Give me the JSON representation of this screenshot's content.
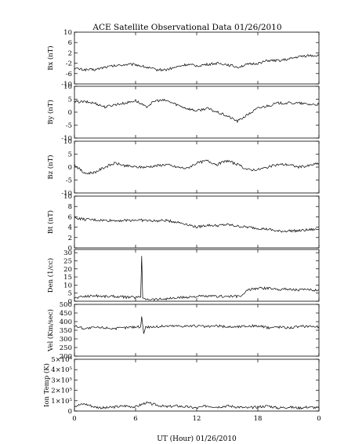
{
  "title": "ACE Satellite Observational Data   01/26/2010",
  "x_axis_label": "UT (Hour)   01/26/2010",
  "x_tick_labels": [
    "0",
    "6",
    "12",
    "18",
    "0"
  ],
  "chart_data": [
    {
      "type": "line",
      "ylabel": "Bx (nT)",
      "ylim": [
        -10,
        10
      ],
      "y_tick_labels": [
        "10",
        "6",
        "2",
        "-2",
        "-6",
        "-10"
      ],
      "xlim": [
        0,
        24
      ],
      "series": [
        {
          "x": [
            0,
            1,
            2,
            3,
            4,
            5,
            6,
            7,
            8,
            9,
            10,
            11,
            12,
            13,
            14,
            15,
            16,
            17,
            18,
            19,
            20,
            21,
            22,
            23,
            24
          ],
          "values": [
            -4,
            -4.5,
            -4.5,
            -3.5,
            -3,
            -2.5,
            -2.5,
            -3.5,
            -4.5,
            -4.5,
            -3.5,
            -2.5,
            -3,
            -2.5,
            -2,
            -2.5,
            -3.5,
            -2.5,
            -2,
            -1,
            -1,
            -0.5,
            0.5,
            1,
            1
          ]
        }
      ]
    },
    {
      "type": "line",
      "ylabel": "By (nT)",
      "ylim": [
        -10,
        10
      ],
      "y_tick_labels": [
        "10",
        "5",
        "0",
        "-5",
        "-10"
      ],
      "xlim": [
        0,
        24
      ],
      "series": [
        {
          "x": [
            0,
            1,
            2,
            3,
            4,
            5,
            6,
            7,
            8,
            9,
            10,
            11,
            12,
            13,
            14,
            15,
            16,
            17,
            18,
            19,
            20,
            21,
            22,
            23,
            24
          ],
          "values": [
            4,
            4,
            3.5,
            2,
            3,
            3.5,
            4.5,
            2,
            4.5,
            4.5,
            3,
            1.5,
            0.5,
            1.5,
            0,
            -1.5,
            -3.5,
            -1,
            1.5,
            2.5,
            3.5,
            3.5,
            3.5,
            3,
            3
          ]
        }
      ]
    },
    {
      "type": "line",
      "ylabel": "Bz (nT)",
      "ylim": [
        -10,
        10
      ],
      "y_tick_labels": [
        "10",
        "5",
        "0",
        "-5",
        "-10"
      ],
      "xlim": [
        0,
        24
      ],
      "series": [
        {
          "x": [
            0,
            1,
            2,
            3,
            4,
            5,
            6,
            7,
            8,
            9,
            10,
            11,
            12,
            13,
            14,
            15,
            16,
            17,
            18,
            19,
            20,
            21,
            22,
            23,
            24
          ],
          "values": [
            1,
            -2.5,
            -2,
            0,
            1.5,
            0.5,
            0,
            0,
            0.5,
            1,
            0,
            -0.5,
            1.5,
            2.5,
            1,
            2.5,
            1,
            -1,
            -1,
            0,
            1,
            1,
            0,
            0.5,
            1.5
          ]
        }
      ]
    },
    {
      "type": "line",
      "ylabel": "Bt (nT)",
      "ylim": [
        0,
        10
      ],
      "y_tick_labels": [
        "10",
        "8",
        "6",
        "4",
        "2",
        "0"
      ],
      "xlim": [
        0,
        24
      ],
      "series": [
        {
          "x": [
            0,
            1,
            2,
            3,
            4,
            5,
            6,
            7,
            8,
            9,
            10,
            11,
            12,
            13,
            14,
            15,
            16,
            17,
            18,
            19,
            20,
            21,
            22,
            23,
            24
          ],
          "values": [
            5.8,
            5.5,
            5.4,
            5.3,
            5.3,
            5.3,
            5.4,
            5.3,
            5.2,
            5.3,
            5.0,
            4.6,
            4.0,
            4.4,
            4.3,
            4.5,
            4.2,
            4.0,
            3.8,
            3.6,
            3.2,
            3.3,
            3.3,
            3.5,
            3.6
          ]
        }
      ]
    },
    {
      "type": "line",
      "ylabel": "Den (1/cc)",
      "ylim": [
        0,
        32
      ],
      "y_tick_labels": [
        "30",
        "25",
        "20",
        "15",
        "10",
        "5",
        "0"
      ],
      "xlim": [
        0,
        24
      ],
      "series": [
        {
          "x": [
            0,
            1,
            2,
            3,
            4,
            5,
            6,
            6.5,
            6.6,
            6.7,
            7,
            8,
            9,
            10,
            11,
            12,
            13,
            14,
            15,
            16,
            16.5,
            17,
            18,
            19,
            20,
            21,
            22,
            23,
            24
          ],
          "values": [
            2,
            3,
            3.5,
            3,
            3,
            2.5,
            2.5,
            2.5,
            28,
            2,
            1.5,
            1.2,
            1.5,
            2,
            2.5,
            3,
            3,
            3,
            3,
            3,
            3.5,
            7,
            8,
            8,
            7.5,
            7.5,
            7,
            7,
            7
          ]
        }
      ]
    },
    {
      "type": "line",
      "ylabel": "Vel (Km/sec)",
      "ylim": [
        200,
        500
      ],
      "y_tick_labels": [
        "500",
        "450",
        "400",
        "350",
        "300",
        "250",
        "200"
      ],
      "xlim": [
        0,
        24
      ],
      "series": [
        {
          "x": [
            0,
            1,
            2,
            3,
            4,
            5,
            6,
            6.5,
            6.6,
            6.8,
            7,
            8,
            9,
            10,
            11,
            12,
            13,
            14,
            15,
            16,
            17,
            18,
            19,
            20,
            21,
            22,
            23,
            24
          ],
          "values": [
            375,
            360,
            365,
            365,
            360,
            365,
            370,
            370,
            430,
            330,
            370,
            370,
            375,
            375,
            375,
            375,
            370,
            375,
            370,
            370,
            375,
            375,
            365,
            370,
            365,
            370,
            375,
            370
          ]
        }
      ]
    },
    {
      "type": "line",
      "ylabel": "Ion Temp (K)",
      "ylim": [
        0,
        500000
      ],
      "y_tick_labels": [
        "5×10⁵",
        "4×10⁵",
        "3×10⁵",
        "2×10⁵",
        "1×10⁵",
        "0"
      ],
      "xlim": [
        0,
        24
      ],
      "series": [
        {
          "x": [
            0,
            1,
            2,
            3,
            4,
            5,
            6,
            7,
            8,
            9,
            10,
            11,
            12,
            13,
            14,
            15,
            16,
            17,
            18,
            19,
            20,
            21,
            22,
            23,
            24
          ],
          "values": [
            50000,
            70000,
            40000,
            30000,
            40000,
            50000,
            40000,
            80000,
            60000,
            40000,
            50000,
            40000,
            30000,
            50000,
            40000,
            50000,
            40000,
            30000,
            40000,
            50000,
            30000,
            40000,
            30000,
            40000,
            30000
          ]
        }
      ]
    }
  ]
}
